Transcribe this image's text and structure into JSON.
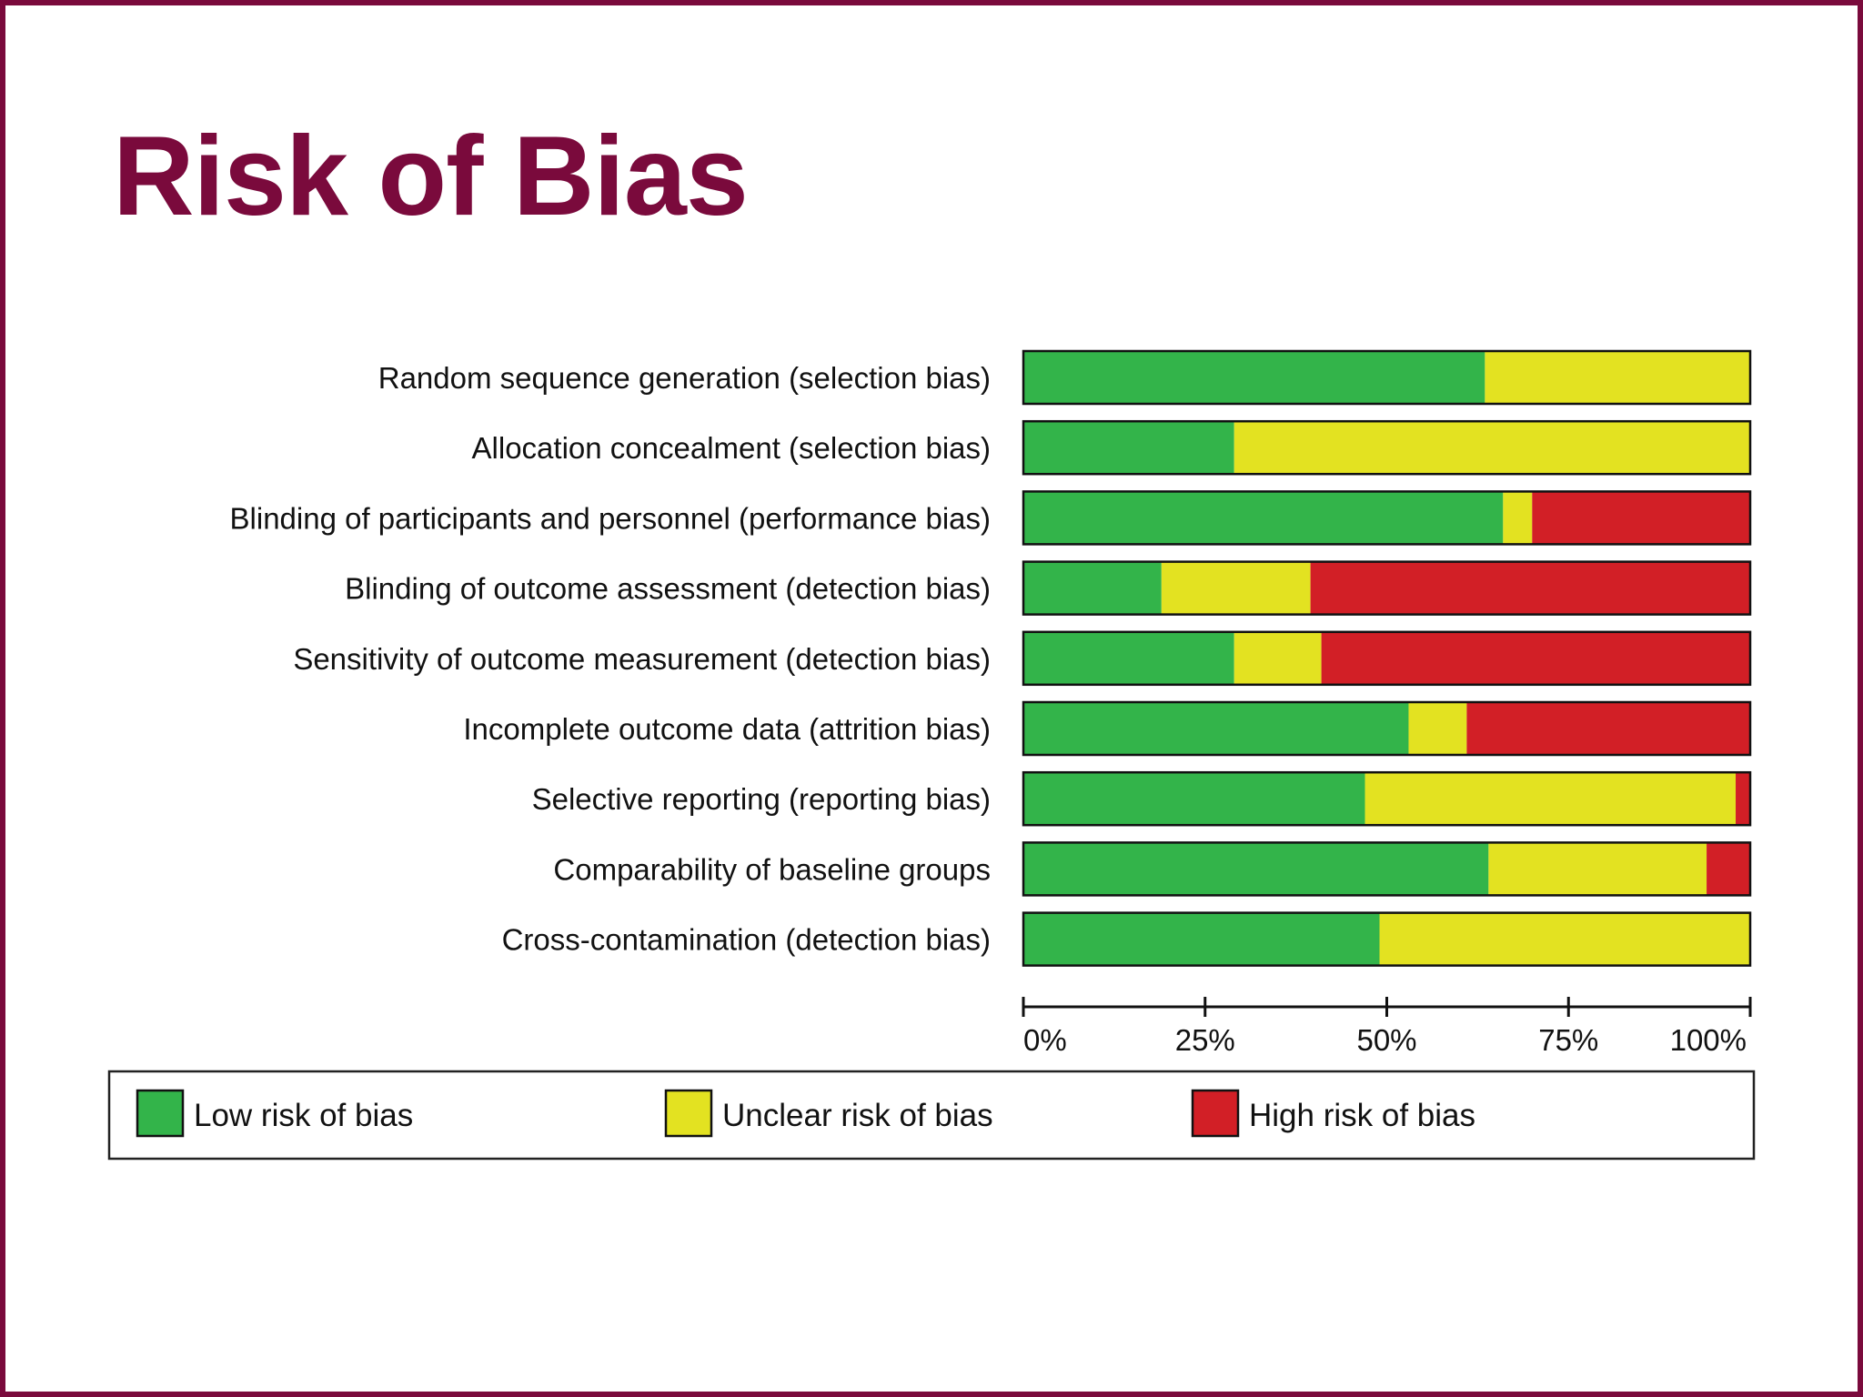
{
  "slide": {
    "title": "Risk of Bias",
    "frame_color": "#7a0a3c"
  },
  "chart_data": {
    "type": "bar",
    "orientation": "horizontal-stacked-100",
    "categories": [
      "Random sequence generation (selection bias)",
      "Allocation concealment (selection bias)",
      "Blinding of participants and personnel (performance bias)",
      "Blinding of outcome assessment (detection bias)",
      "Sensitivity of outcome measurement (detection bias)",
      "Incomplete outcome data (attrition bias)",
      "Selective reporting (reporting bias)",
      "Comparability of baseline groups",
      "Cross-contamination (detection bias)"
    ],
    "series": [
      {
        "name": "Low risk of bias",
        "color": "#33b44a",
        "values": [
          63.5,
          29,
          66,
          19,
          29,
          53,
          47,
          64,
          49
        ]
      },
      {
        "name": "Unclear risk of bias",
        "color": "#e3e221",
        "values": [
          36.5,
          71,
          4,
          20.5,
          12,
          8,
          51,
          30,
          51
        ]
      },
      {
        "name": "High risk of bias",
        "color": "#d21f26",
        "values": [
          0,
          0,
          30,
          60.5,
          59,
          39,
          2,
          6,
          0
        ]
      }
    ],
    "x_ticks": [
      "0%",
      "25%",
      "50%",
      "75%",
      "100%"
    ],
    "xlim": [
      0,
      100
    ],
    "grid": false,
    "legend_position": "bottom"
  }
}
